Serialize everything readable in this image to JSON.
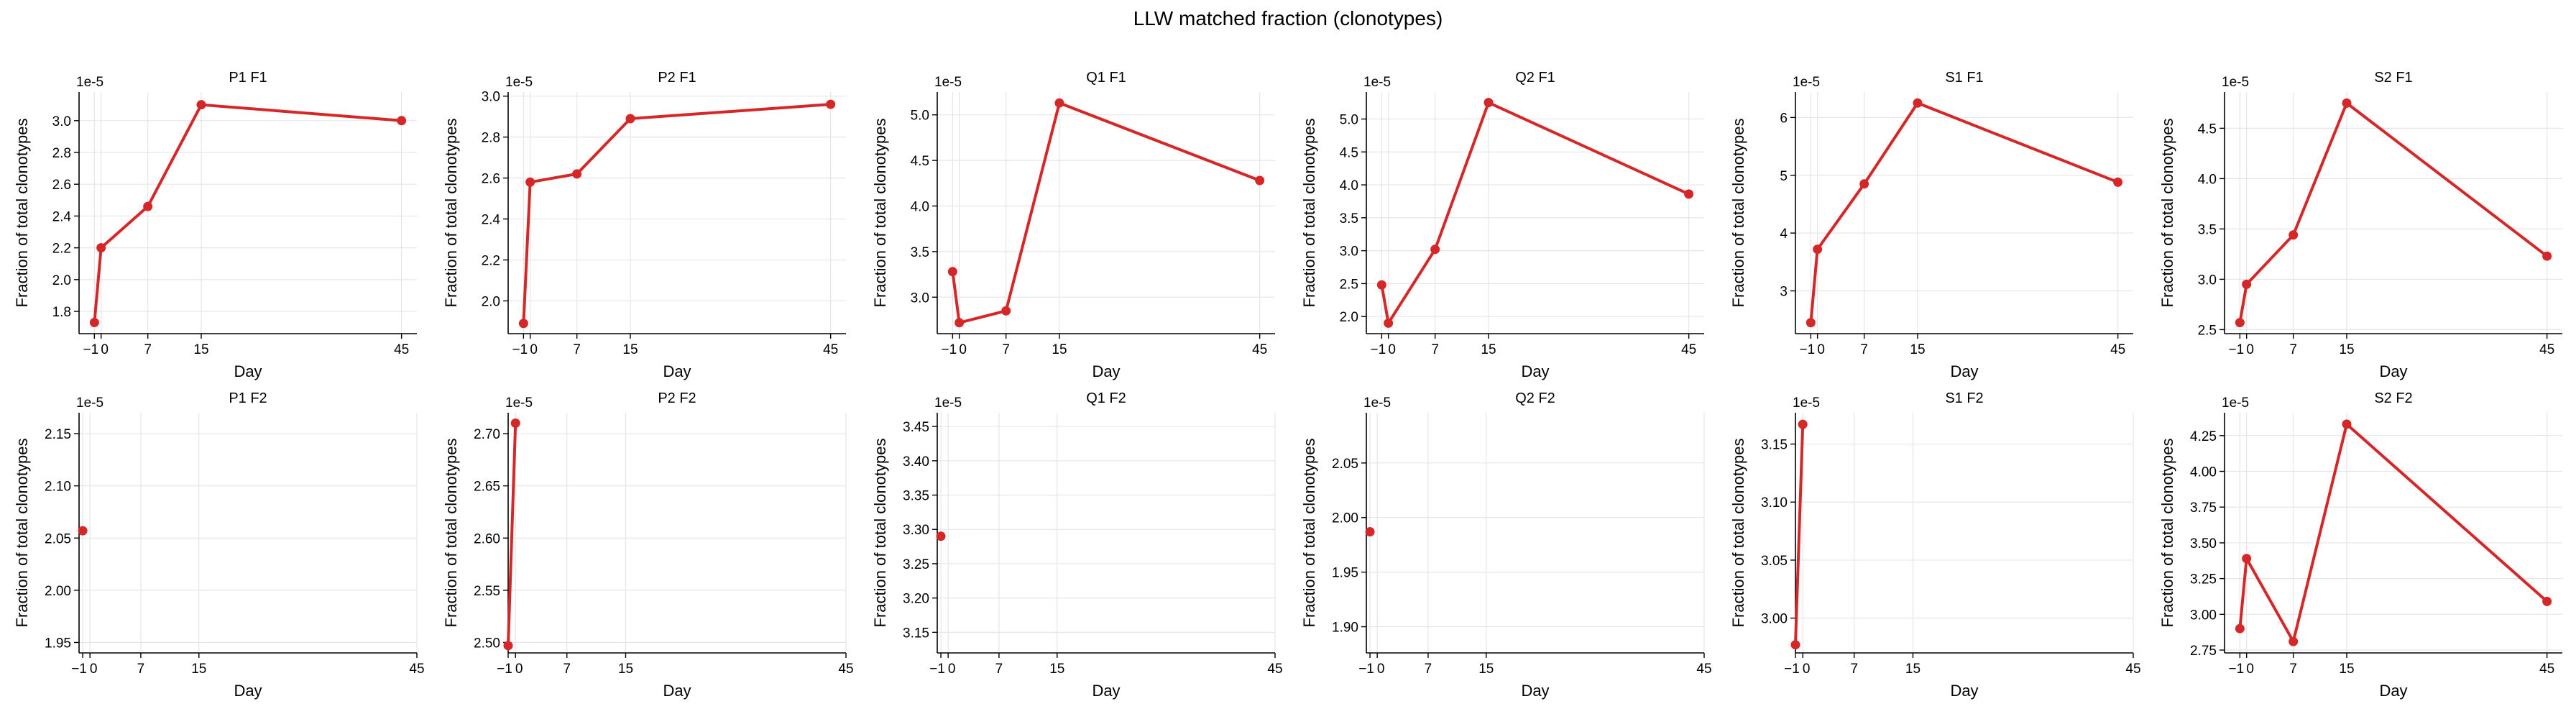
{
  "figure": {
    "title": "LLW matched fraction (clonotypes)",
    "line_color": "#d62728"
  },
  "chart_data": [
    {
      "type": "line",
      "title": "P1 F1",
      "xlabel": "Day",
      "ylabel": "Fraction of total clonotypes",
      "offset": "1e-5",
      "x": [
        -1,
        0,
        7,
        15,
        45
      ],
      "y": [
        1.73,
        2.2,
        2.46,
        3.1,
        3.0
      ],
      "xticks": [
        -1,
        0,
        7,
        15,
        45
      ],
      "xtick_labels": [
        "−1",
        "0",
        "7",
        "15",
        "45"
      ],
      "yticks": [
        1.8,
        2.0,
        2.2,
        2.4,
        2.6,
        2.8,
        3.0
      ],
      "ytick_labels": [
        "1.8",
        "2.0",
        "2.2",
        "2.4",
        "2.6",
        "2.8",
        "3.0"
      ],
      "xlim": [
        -3.3,
        47.3
      ],
      "ylim": [
        1.66,
        3.18
      ],
      "grid": true
    },
    {
      "type": "line",
      "title": "P2 F1",
      "xlabel": "Day",
      "ylabel": "Fraction of total clonotypes",
      "offset": "1e-5",
      "x": [
        -1,
        0,
        7,
        15,
        45
      ],
      "y": [
        1.89,
        2.58,
        2.62,
        2.89,
        2.96
      ],
      "xticks": [
        -1,
        0,
        7,
        15,
        45
      ],
      "xtick_labels": [
        "−1",
        "0",
        "7",
        "15",
        "45"
      ],
      "yticks": [
        2.0,
        2.2,
        2.4,
        2.6,
        2.8,
        3.0
      ],
      "ytick_labels": [
        "2.0",
        "2.2",
        "2.4",
        "2.6",
        "2.8",
        "3.0"
      ],
      "xlim": [
        -3.3,
        47.3
      ],
      "ylim": [
        1.84,
        3.02
      ],
      "grid": true
    },
    {
      "type": "line",
      "title": "Q1 F1",
      "xlabel": "Day",
      "ylabel": "Fraction of total clonotypes",
      "offset": "1e-5",
      "x": [
        -1,
        0,
        7,
        15,
        45
      ],
      "y": [
        3.28,
        2.72,
        2.85,
        5.13,
        4.28
      ],
      "xticks": [
        -1,
        0,
        7,
        15,
        45
      ],
      "xtick_labels": [
        "−1",
        "0",
        "7",
        "15",
        "45"
      ],
      "yticks": [
        3.0,
        3.5,
        4.0,
        4.5,
        5.0
      ],
      "ytick_labels": [
        "3.0",
        "3.5",
        "4.0",
        "4.5",
        "5.0"
      ],
      "xlim": [
        -3.3,
        47.3
      ],
      "ylim": [
        2.6,
        5.25
      ],
      "grid": true
    },
    {
      "type": "line",
      "title": "Q2 F1",
      "xlabel": "Day",
      "ylabel": "Fraction of total clonotypes",
      "offset": "1e-5",
      "x": [
        -1,
        0,
        7,
        15,
        45
      ],
      "y": [
        2.48,
        1.9,
        3.02,
        5.25,
        3.86
      ],
      "xticks": [
        -1,
        0,
        7,
        15,
        45
      ],
      "xtick_labels": [
        "−1",
        "0",
        "7",
        "15",
        "45"
      ],
      "yticks": [
        2.0,
        2.5,
        3.0,
        3.5,
        4.0,
        4.5,
        5.0
      ],
      "ytick_labels": [
        "2.0",
        "2.5",
        "3.0",
        "3.5",
        "4.0",
        "4.5",
        "5.0"
      ],
      "xlim": [
        -3.3,
        47.3
      ],
      "ylim": [
        1.74,
        5.41
      ],
      "grid": true
    },
    {
      "type": "line",
      "title": "S1 F1",
      "xlabel": "Day",
      "ylabel": "Fraction of total clonotypes",
      "offset": "1e-5",
      "x": [
        -1,
        0,
        7,
        15,
        45
      ],
      "y": [
        2.45,
        3.72,
        4.85,
        6.25,
        4.88
      ],
      "xticks": [
        -1,
        0,
        7,
        15,
        45
      ],
      "xtick_labels": [
        "−1",
        "0",
        "7",
        "15",
        "45"
      ],
      "yticks": [
        3,
        4,
        5,
        6
      ],
      "ytick_labels": [
        "3",
        "4",
        "5",
        "6"
      ],
      "xlim": [
        -3.3,
        47.3
      ],
      "ylim": [
        2.26,
        6.44
      ],
      "grid": true
    },
    {
      "type": "line",
      "title": "S2 F1",
      "xlabel": "Day",
      "ylabel": "Fraction of total clonotypes",
      "offset": "1e-5",
      "x": [
        -1,
        0,
        7,
        15,
        45
      ],
      "y": [
        2.57,
        2.95,
        3.44,
        4.75,
        3.23
      ],
      "xticks": [
        -1,
        0,
        7,
        15,
        45
      ],
      "xtick_labels": [
        "−1",
        "0",
        "7",
        "15",
        "45"
      ],
      "yticks": [
        2.5,
        3.0,
        3.5,
        4.0,
        4.5
      ],
      "ytick_labels": [
        "2.5",
        "3.0",
        "3.5",
        "4.0",
        "4.5"
      ],
      "xlim": [
        -3.3,
        47.3
      ],
      "ylim": [
        2.46,
        4.86
      ],
      "grid": true
    },
    {
      "type": "line",
      "title": "P1 F2",
      "xlabel": "Day",
      "ylabel": "Fraction of total clonotypes",
      "offset": "1e-5",
      "x": [
        -1
      ],
      "y": [
        2.057
      ],
      "xticks": [
        -1,
        0,
        7,
        15,
        45
      ],
      "xtick_labels": [
        "−1",
        "0",
        "7",
        "15",
        "45"
      ],
      "yticks": [
        1.95,
        2.0,
        2.05,
        2.1,
        2.15
      ],
      "ytick_labels": [
        "1.95",
        "2.00",
        "2.05",
        "2.10",
        "2.15"
      ],
      "xlim": [
        -1.5,
        45
      ],
      "ylim": [
        1.94,
        2.17
      ],
      "grid": true
    },
    {
      "type": "line",
      "title": "P2 F2",
      "xlabel": "Day",
      "ylabel": "Fraction of total clonotypes",
      "offset": "1e-5",
      "x": [
        -1,
        0
      ],
      "y": [
        2.497,
        2.71
      ],
      "xticks": [
        -1,
        0,
        7,
        15,
        45
      ],
      "xtick_labels": [
        "−1",
        "0",
        "7",
        "15",
        "45"
      ],
      "yticks": [
        2.5,
        2.55,
        2.6,
        2.65,
        2.7
      ],
      "ytick_labels": [
        "2.50",
        "2.55",
        "2.60",
        "2.65",
        "2.70"
      ],
      "xlim": [
        -1,
        45
      ],
      "ylim": [
        2.49,
        2.72
      ],
      "grid": true
    },
    {
      "type": "line",
      "title": "Q1 F2",
      "xlabel": "Day",
      "ylabel": "Fraction of total clonotypes",
      "offset": "1e-5",
      "x": [
        -1
      ],
      "y": [
        3.29
      ],
      "xticks": [
        -1,
        0,
        7,
        15,
        45
      ],
      "xtick_labels": [
        "−1",
        "0",
        "7",
        "15",
        "45"
      ],
      "yticks": [
        3.15,
        3.2,
        3.25,
        3.3,
        3.35,
        3.4,
        3.45
      ],
      "ytick_labels": [
        "3.15",
        "3.20",
        "3.25",
        "3.30",
        "3.35",
        "3.40",
        "3.45"
      ],
      "xlim": [
        -1.5,
        45
      ],
      "ylim": [
        3.12,
        3.47
      ],
      "grid": true
    },
    {
      "type": "line",
      "title": "Q2 F2",
      "xlabel": "Day",
      "ylabel": "Fraction of total clonotypes",
      "offset": "1e-5",
      "x": [
        -1
      ],
      "y": [
        1.987
      ],
      "xticks": [
        -1,
        0,
        7,
        15,
        45
      ],
      "xtick_labels": [
        "−1",
        "0",
        "7",
        "15",
        "45"
      ],
      "yticks": [
        1.9,
        1.95,
        2.0,
        2.05
      ],
      "ytick_labels": [
        "1.90",
        "1.95",
        "2.00",
        "2.05"
      ],
      "xlim": [
        -1.5,
        45
      ],
      "ylim": [
        1.876,
        2.096
      ],
      "grid": true
    },
    {
      "type": "line",
      "title": "S1 F2",
      "xlabel": "Day",
      "ylabel": "Fraction of total clonotypes",
      "offset": "1e-5",
      "x": [
        -1,
        0
      ],
      "y": [
        2.977,
        3.167
      ],
      "xticks": [
        -1,
        0,
        7,
        15,
        45
      ],
      "xtick_labels": [
        "−1",
        "0",
        "7",
        "15",
        "45"
      ],
      "yticks": [
        3.0,
        3.05,
        3.1,
        3.15
      ],
      "ytick_labels": [
        "3.00",
        "3.05",
        "3.10",
        "3.15"
      ],
      "xlim": [
        -1,
        45
      ],
      "ylim": [
        2.97,
        3.177
      ],
      "grid": true
    },
    {
      "type": "line",
      "title": "S2 F2",
      "xlabel": "Day",
      "ylabel": "Fraction of total clonotypes",
      "offset": "1e-5",
      "x": [
        -1,
        0,
        7,
        15,
        45
      ],
      "y": [
        2.9,
        3.39,
        2.81,
        4.33,
        3.09
      ],
      "xticks": [
        -1,
        0,
        7,
        15,
        45
      ],
      "xtick_labels": [
        "−1",
        "0",
        "7",
        "15",
        "45"
      ],
      "yticks": [
        2.75,
        3.0,
        3.25,
        3.5,
        3.75,
        4.0,
        4.25
      ],
      "ytick_labels": [
        "2.75",
        "3.00",
        "3.25",
        "3.50",
        "3.75",
        "4.00",
        "4.25"
      ],
      "xlim": [
        -3.3,
        47.3
      ],
      "ylim": [
        2.73,
        4.41
      ],
      "grid": true
    }
  ]
}
